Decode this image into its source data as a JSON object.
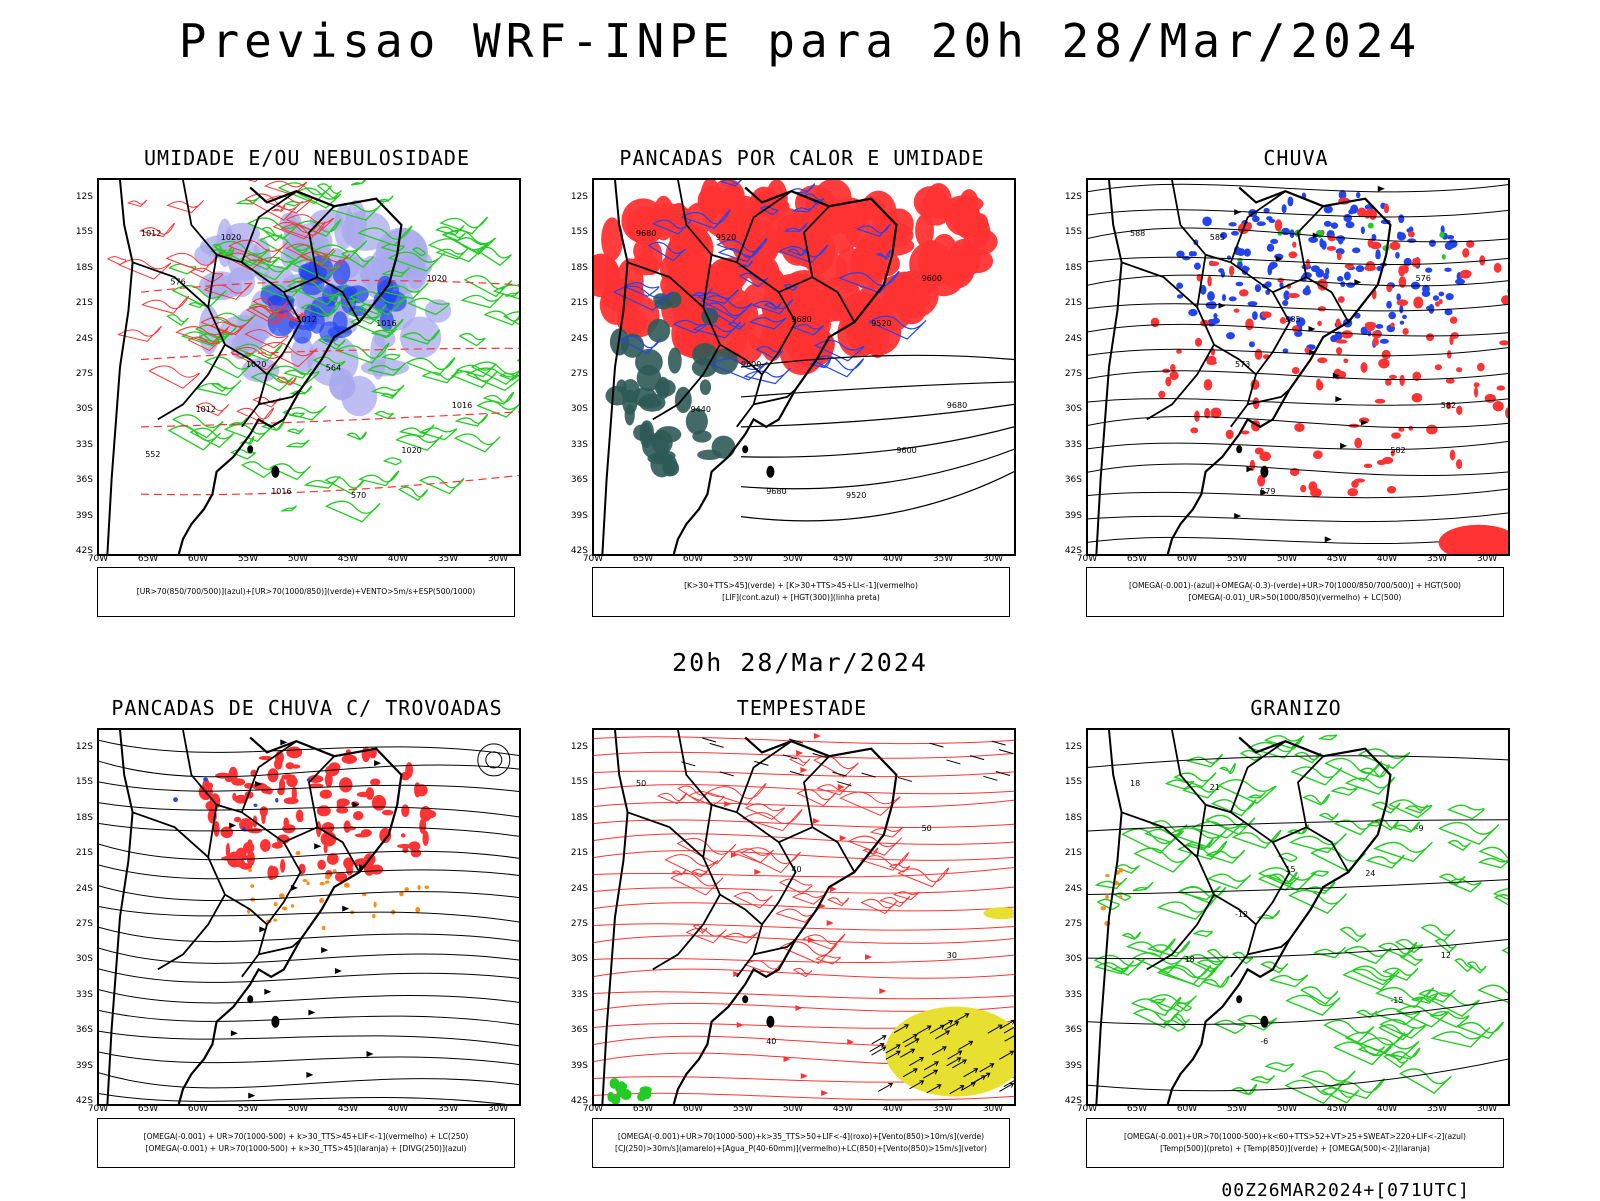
{
  "title": "Previsao WRF-INPE  para 20h 28/Mar/2024",
  "subtitle": "20h 28/Mar/2024",
  "footer": "00Z26MAR2024+[071UTC]",
  "lat_labels": [
    "12S",
    "15S",
    "18S",
    "21S",
    "24S",
    "27S",
    "30S",
    "33S",
    "36S",
    "39S",
    "42S"
  ],
  "lon_labels": [
    "70W",
    "65W",
    "60W",
    "55W",
    "50W",
    "45W",
    "40W",
    "35W",
    "30W"
  ],
  "colors": {
    "green": "#22cc22",
    "red": "#ff3333",
    "blue": "#2244ee",
    "lavender": "#a8a8ee",
    "darkteal": "#2f5a56",
    "orange": "#ff8c1a",
    "yellow": "#e8e030",
    "black": "#000000"
  },
  "panels": [
    {
      "title": "UMIDADE E/OU NEBULOSIDADE",
      "legend": [
        "[UR>70(850/700/500)](azul)+[UR>70(1000/850)](verde)+VENTO>5m/s+ESP(500/1000)"
      ],
      "contour_labels": [
        "1012",
        "1012",
        "1016",
        "1016",
        "1020",
        "1020",
        "1020",
        "1020",
        "1016",
        "1012",
        "570",
        "576",
        "564",
        "552"
      ]
    },
    {
      "title": "PANCADAS POR CALOR E UMIDADE",
      "legend": [
        "[K>30+TTS>45](verde) + [K>30+TTS>45+LI<-1](vermelho)",
        "[LIF](cont.azul) + [HGT(300)](linha preta)"
      ],
      "contour_labels": [
        "9680",
        "9680",
        "9680",
        "9680",
        "9600",
        "9600",
        "9600",
        "9520",
        "9520",
        "9440",
        "9520"
      ]
    },
    {
      "title": "CHUVA",
      "legend": [
        "[OMEGA(-0.001)-(azul)+OMEGA(-0.3)-(verde)+UR>70(1000/850/700/500)] + HGT(500)",
        "[OMEGA(-0.01)_UR>50(1000/850)(vermelho) + LC(500)"
      ],
      "contour_labels": [
        "588",
        "585",
        "582",
        "579",
        "576",
        "573",
        "582",
        "585"
      ]
    },
    {
      "title": "PANCADAS DE CHUVA C/ TROVOADAS",
      "legend": [
        "[OMEGA(-0.001) + UR>70(1000-500) + k>30_TTS>45+LIF<-1](vermelho) + LC(250)",
        "[OMEGA(-0.001) + UR>70(1000-500) + k>30_TTS>45](laranja) + [DIVG(250)](azul)"
      ],
      "contour_labels": []
    },
    {
      "title": "TEMPESTADE",
      "legend": [
        "[OMEGA(-0.001)+UR>70(1000-500)+k>35_TTS>50+LIF<-4](roxo)+[Vento(850)>10m/s](verde)",
        "[CJ(250)>30m/s](amarelo)+[Agua_P(40-60mm)](vermelho)+LC(850)+[Vento(850)>15m/s](vetor)"
      ],
      "contour_labels": [
        "50",
        "40",
        "30",
        "40",
        "50"
      ]
    },
    {
      "title": "GRANIZO",
      "legend": [
        "[OMEGA(-0.001)+UR>70(1000-500)+k<60+TTS>52+VT>25+SWEAT>220+LIF<-2](azul)",
        "[Temp(500)](preto) + [Temp(850)](verde) + [OMEGA(500)<-2](laranja)"
      ],
      "contour_labels": [
        "18",
        "15",
        "12",
        "-6",
        "-9",
        "-12",
        "-15",
        "21",
        "24",
        "18"
      ]
    }
  ]
}
